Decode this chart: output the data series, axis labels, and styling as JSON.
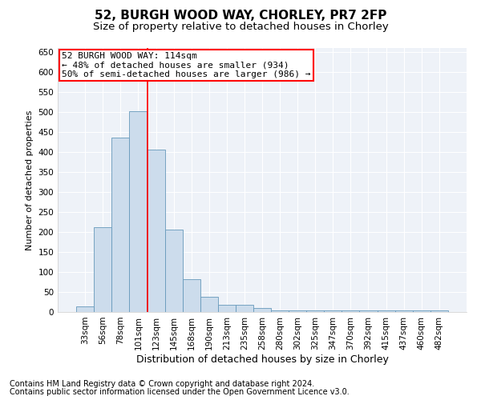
{
  "title1": "52, BURGH WOOD WAY, CHORLEY, PR7 2FP",
  "title2": "Size of property relative to detached houses in Chorley",
  "xlabel": "Distribution of detached houses by size in Chorley",
  "ylabel": "Number of detached properties",
  "categories": [
    "33sqm",
    "56sqm",
    "78sqm",
    "101sqm",
    "123sqm",
    "145sqm",
    "168sqm",
    "190sqm",
    "213sqm",
    "235sqm",
    "258sqm",
    "280sqm",
    "302sqm",
    "325sqm",
    "347sqm",
    "370sqm",
    "392sqm",
    "415sqm",
    "437sqm",
    "460sqm",
    "482sqm"
  ],
  "values": [
    15,
    212,
    436,
    503,
    407,
    207,
    83,
    38,
    18,
    18,
    10,
    5,
    5,
    5,
    5,
    5,
    5,
    5,
    5,
    5,
    5
  ],
  "bar_color": "#ccdcec",
  "bar_edge_color": "#6699bb",
  "red_line_x": 3.52,
  "annotation_line1": "52 BURGH WOOD WAY: 114sqm",
  "annotation_line2": "← 48% of detached houses are smaller (934)",
  "annotation_line3": "50% of semi-detached houses are larger (986) →",
  "annotation_box_color": "white",
  "annotation_box_edge_color": "red",
  "ylim": [
    0,
    660
  ],
  "yticks": [
    0,
    50,
    100,
    150,
    200,
    250,
    300,
    350,
    400,
    450,
    500,
    550,
    600,
    650
  ],
  "footer_line1": "Contains HM Land Registry data © Crown copyright and database right 2024.",
  "footer_line2": "Contains public sector information licensed under the Open Government Licence v3.0.",
  "background_color": "#eef2f8",
  "grid_color": "white",
  "title1_fontsize": 11,
  "title2_fontsize": 9.5,
  "xlabel_fontsize": 9,
  "ylabel_fontsize": 8,
  "tick_fontsize": 7.5,
  "annot_fontsize": 8,
  "footer_fontsize": 7
}
